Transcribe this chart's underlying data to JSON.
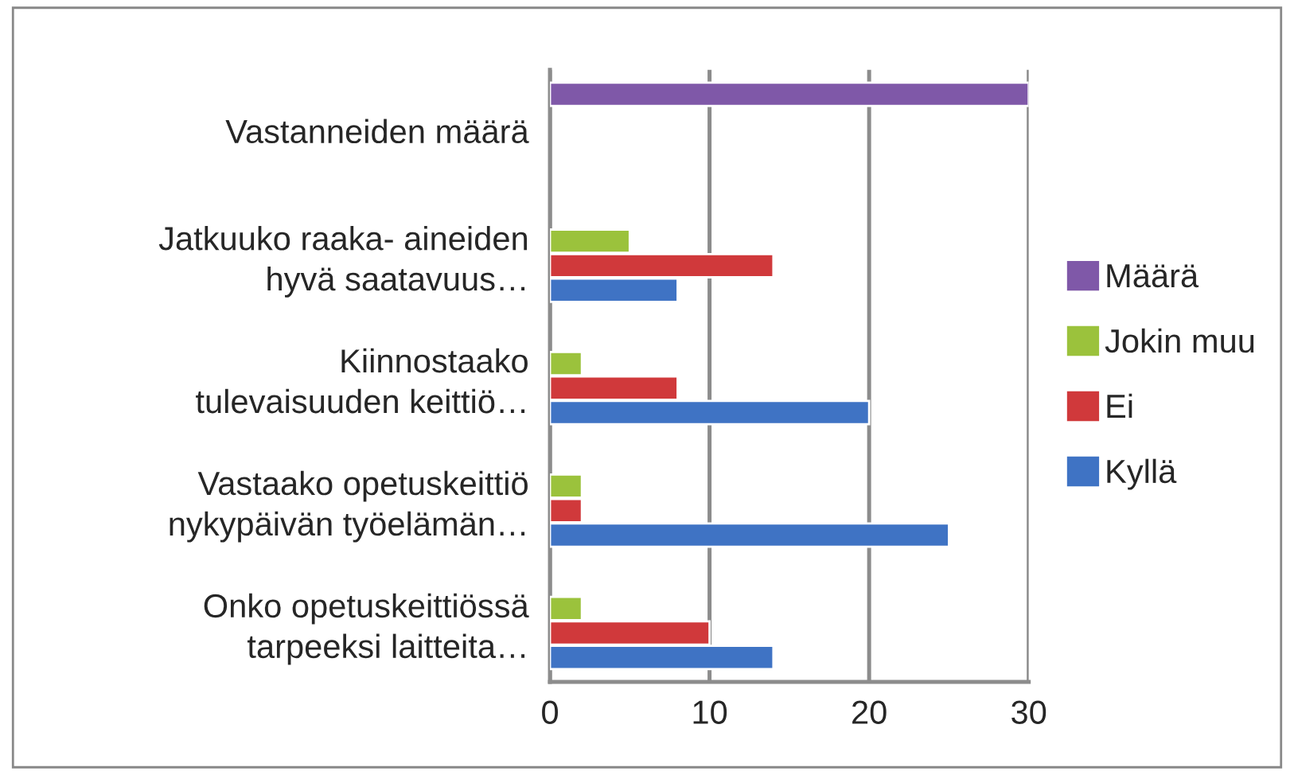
{
  "chart_data": {
    "type": "bar",
    "orientation": "horizontal",
    "categories": [
      "Vastanneiden määrä",
      "Jatkuuko raaka- aineiden\nhyvä saatavuus…",
      "Kiinnostaako\ntulevaisuuden keittiö…",
      "Vastaako opetuskeittiö\nnykypäivän työelämän…",
      "Onko opetuskeittiössä\ntarpeeksi laitteita…"
    ],
    "series": [
      {
        "name": "Kyllä",
        "color": "#3f73c4",
        "values": [
          null,
          8,
          20,
          25,
          14
        ]
      },
      {
        "name": "Ei",
        "color": "#d0393b",
        "values": [
          null,
          14,
          8,
          2,
          10
        ]
      },
      {
        "name": "Jokin muu",
        "color": "#9bc23c",
        "values": [
          null,
          5,
          2,
          2,
          2
        ]
      },
      {
        "name": "Määrä",
        "color": "#7f58a8",
        "values": [
          30,
          null,
          null,
          null,
          null
        ]
      }
    ],
    "xlim": [
      0,
      30
    ],
    "xticks": [
      0,
      10,
      20,
      30
    ],
    "grid": "x",
    "legend": "right"
  }
}
